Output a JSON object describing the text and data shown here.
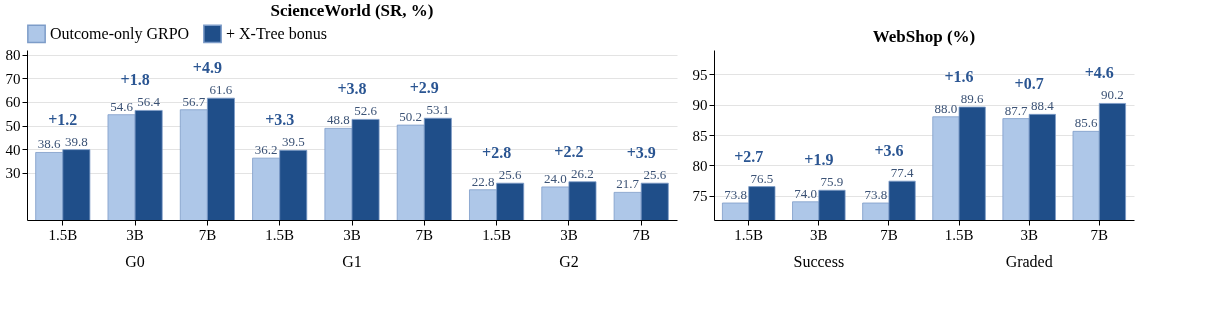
{
  "chart_data": [
    {
      "type": "bar",
      "title": "ScienceWorld (SR, %)",
      "categories": [
        "1.5B",
        "3B",
        "7B",
        "1.5B",
        "3B",
        "7B",
        "1.5B",
        "3B",
        "7B"
      ],
      "ylim": [
        10,
        82
      ],
      "yticks": [
        30,
        40,
        50,
        60,
        70,
        80
      ],
      "grid": "y",
      "legend": "top",
      "series": [
        {
          "name": "Outcome-only GRPO",
          "color": "#aec7e8",
          "values": [
            38.6,
            54.6,
            56.7,
            36.2,
            48.8,
            50.2,
            22.8,
            24.0,
            21.7
          ],
          "value_labels": [
            "38.6",
            "54.6",
            "56.7",
            "36.2",
            "48.8",
            "50.2",
            "22.8",
            "24.0",
            "21.7"
          ]
        },
        {
          "name": "+ X-Tree bonus",
          "color": "#1f4e89",
          "values": [
            39.8,
            56.4,
            61.6,
            39.5,
            52.6,
            53.1,
            25.6,
            26.2,
            25.6
          ],
          "value_labels": [
            "39.8",
            "56.4",
            "61.6",
            "39.5",
            "52.6",
            "53.1",
            "25.6",
            "26.2",
            "25.6"
          ]
        }
      ],
      "annotations": [
        "+1.2",
        "+1.8",
        "+4.9",
        "+3.3",
        "+3.8",
        "+2.9",
        "+2.8",
        "+2.2",
        "+3.9",
        "G0",
        "G1",
        "G2"
      ]
    },
    {
      "type": "bar",
      "title": "WebShop (%)",
      "categories": [
        "1.5B",
        "3B",
        "7B",
        "1.5B",
        "3B",
        "7B"
      ],
      "ylim": [
        71,
        99
      ],
      "yticks": [
        75,
        80,
        85,
        90,
        95
      ],
      "grid": "y",
      "series": [
        {
          "color": "#aec7e8",
          "values": [
            73.8,
            74.0,
            73.8,
            88.0,
            87.7,
            85.6
          ],
          "value_labels": [
            "73.8",
            "74.0",
            "73.8",
            "88.0",
            "87.7",
            "85.6"
          ]
        },
        {
          "color": "#1f4e89",
          "values": [
            76.5,
            75.9,
            77.4,
            89.6,
            88.4,
            90.2
          ],
          "value_labels": [
            "76.5",
            "75.9",
            "77.4",
            "89.6",
            "88.4",
            "90.2"
          ]
        }
      ],
      "annotations": [
        "+2.7",
        "+1.9",
        "+3.6",
        "+1.6",
        "+0.7",
        "+4.6",
        "Success",
        "Graded"
      ]
    }
  ]
}
